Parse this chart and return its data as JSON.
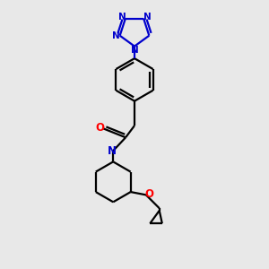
{
  "bg_color": "#e8e8e8",
  "bond_color": "#000000",
  "nitrogen_color": "#0000cc",
  "oxygen_color": "#ff0000",
  "line_width": 1.6,
  "fig_size": [
    3.0,
    3.0
  ],
  "dpi": 100,
  "xlim": [
    -2.2,
    2.2
  ],
  "ylim": [
    -4.5,
    4.5
  ]
}
